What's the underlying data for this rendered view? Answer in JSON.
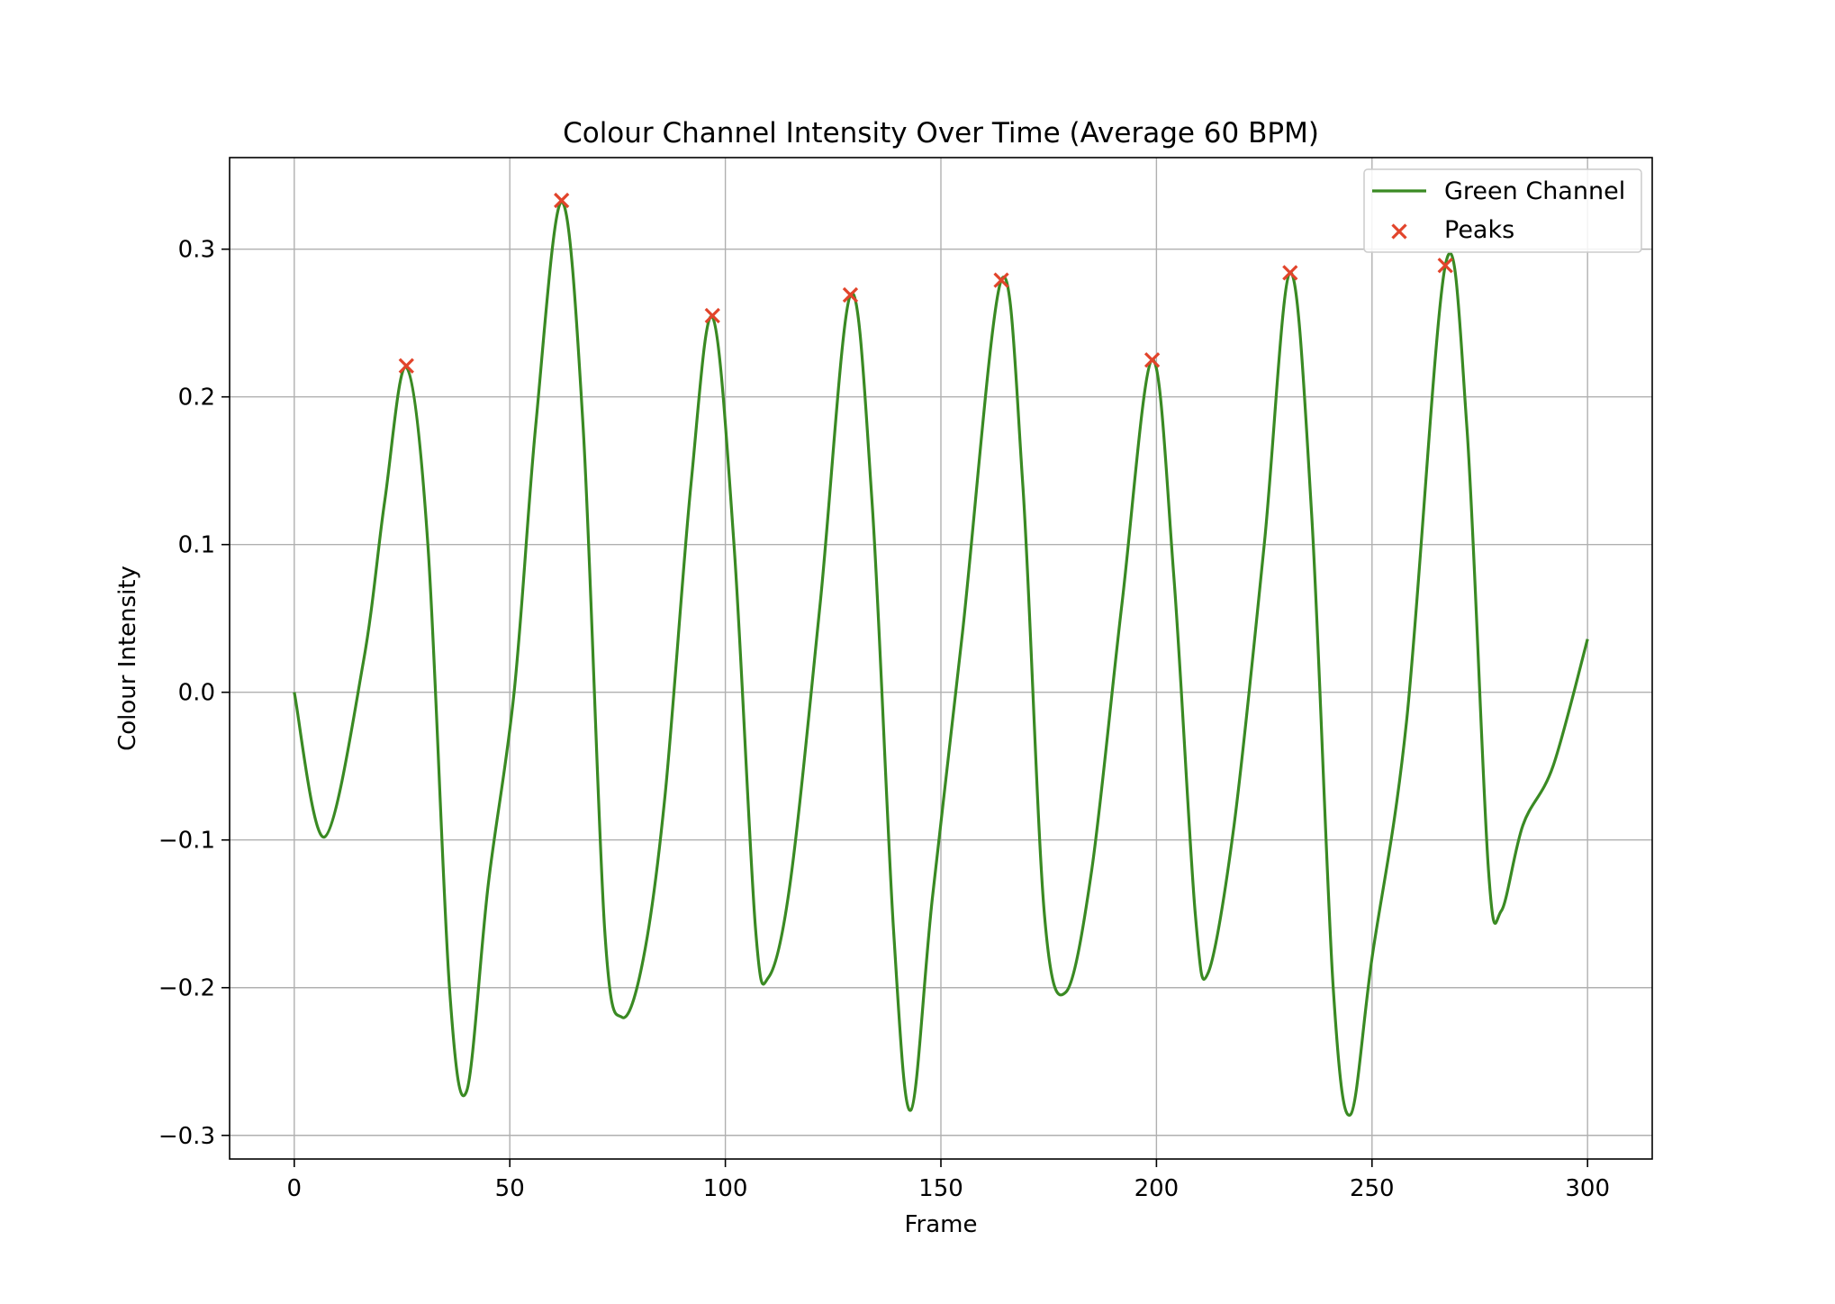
{
  "chart_data": {
    "type": "line",
    "title": "Colour Channel Intensity Over Time (Average 60 BPM)",
    "xlabel": "Frame",
    "ylabel": "Colour Intensity",
    "xlim": [
      -15,
      315
    ],
    "ylim": [
      -0.316,
      0.362
    ],
    "xticks": [
      0,
      50,
      100,
      150,
      200,
      250,
      300
    ],
    "xtick_labels": [
      "0",
      "50",
      "100",
      "150",
      "200",
      "250",
      "300"
    ],
    "yticks": [
      -0.3,
      -0.2,
      -0.1,
      0.0,
      0.1,
      0.2,
      0.3
    ],
    "ytick_labels": [
      "−0.3",
      "−0.2",
      "−0.1",
      "0.0",
      "0.1",
      "0.2",
      "0.3"
    ],
    "grid": true,
    "legend_position": "top-right",
    "series": [
      {
        "name": "Green Channel",
        "kind": "line",
        "color": "#3a8a23",
        "points": [
          [
            0,
            0.0
          ],
          [
            7,
            -0.098
          ],
          [
            16,
            0.02
          ],
          [
            21,
            0.13
          ],
          [
            26,
            0.22
          ],
          [
            31,
            0.1
          ],
          [
            36,
            -0.2
          ],
          [
            40,
            -0.27
          ],
          [
            45,
            -0.13
          ],
          [
            51,
            0.0
          ],
          [
            56,
            0.18
          ],
          [
            62,
            0.332
          ],
          [
            67,
            0.18
          ],
          [
            72,
            -0.16
          ],
          [
            76,
            -0.22
          ],
          [
            81,
            -0.18
          ],
          [
            86,
            -0.07
          ],
          [
            92,
            0.14
          ],
          [
            97,
            0.254
          ],
          [
            102,
            0.1
          ],
          [
            107,
            -0.16
          ],
          [
            110,
            -0.193
          ],
          [
            115,
            -0.13
          ],
          [
            122,
            0.06
          ],
          [
            129,
            0.269
          ],
          [
            134,
            0.13
          ],
          [
            139,
            -0.16
          ],
          [
            143,
            -0.283
          ],
          [
            148,
            -0.14
          ],
          [
            155,
            0.04
          ],
          [
            164,
            0.279
          ],
          [
            169,
            0.14
          ],
          [
            174,
            -0.15
          ],
          [
            179,
            -0.203
          ],
          [
            185,
            -0.12
          ],
          [
            192,
            0.06
          ],
          [
            199,
            0.225
          ],
          [
            204,
            0.08
          ],
          [
            209,
            -0.15
          ],
          [
            212,
            -0.19
          ],
          [
            218,
            -0.09
          ],
          [
            225,
            0.1
          ],
          [
            231,
            0.284
          ],
          [
            236,
            0.12
          ],
          [
            241,
            -0.2
          ],
          [
            245,
            -0.286
          ],
          [
            250,
            -0.18
          ],
          [
            258,
            -0.02
          ],
          [
            267,
            0.289
          ],
          [
            272,
            0.18
          ],
          [
            277,
            -0.12
          ],
          [
            280,
            -0.148
          ],
          [
            285,
            -0.09
          ],
          [
            292,
            -0.05
          ],
          [
            300,
            0.036
          ]
        ]
      },
      {
        "name": "Peaks",
        "kind": "scatter",
        "marker": "x",
        "color": "#e2442b",
        "points": [
          [
            26,
            0.221
          ],
          [
            62,
            0.333
          ],
          [
            97,
            0.255
          ],
          [
            129,
            0.269
          ],
          [
            164,
            0.279
          ],
          [
            199,
            0.225
          ],
          [
            231,
            0.284
          ],
          [
            267,
            0.289
          ]
        ]
      }
    ]
  }
}
